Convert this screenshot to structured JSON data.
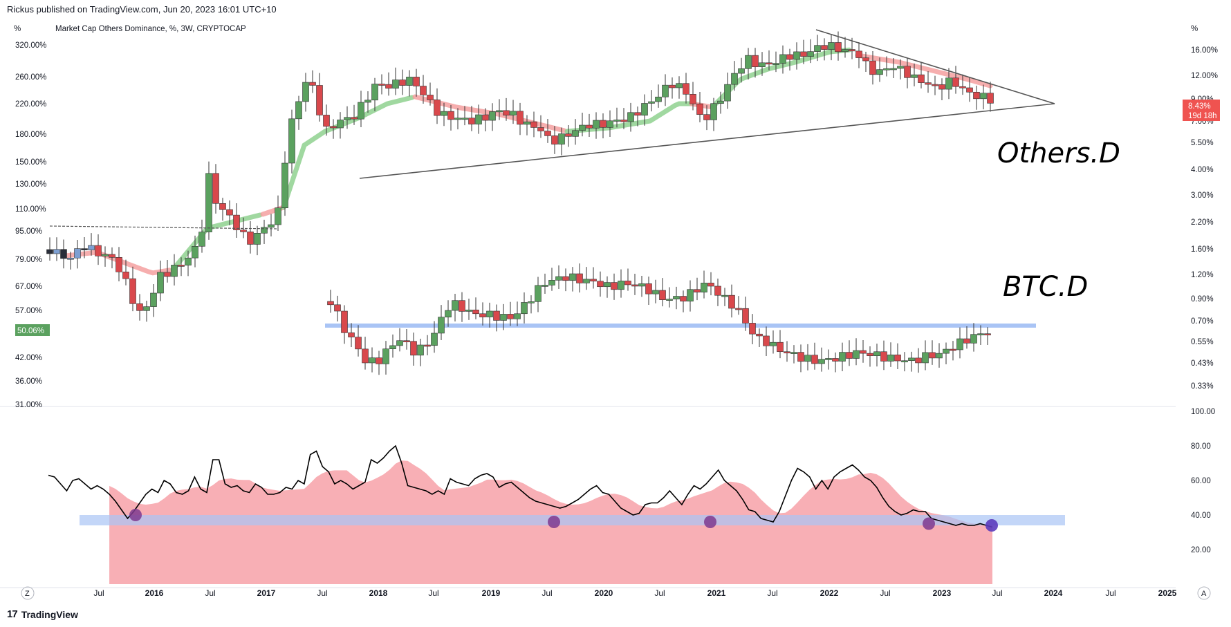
{
  "header": {
    "published": "Rickus published on TradingView.com, Jun 20, 2023 16:01 UTC+10"
  },
  "footer": {
    "brand": "TradingView",
    "logo_glyph": "17"
  },
  "chart_data": {
    "type": "candlestick",
    "title": "Market Cap Others Dominance, %, 3W, CRYPTOCAP",
    "left_axis": {
      "unit_label": "%",
      "ticks": [
        "320.00%",
        "260.00%",
        "220.00%",
        "180.00%",
        "150.00%",
        "130.00%",
        "110.00%",
        "95.00%",
        "79.00%",
        "67.00%",
        "57.00%",
        "50.06%",
        "42.00%",
        "36.00%",
        "31.00%"
      ],
      "current_value": "50.06%"
    },
    "right_axis": {
      "unit_label": "%",
      "ticks": [
        "16.00%",
        "12.00%",
        "9.00%",
        "7.00%",
        "5.50%",
        "4.00%",
        "3.00%",
        "2.20%",
        "1.60%",
        "1.20%",
        "0.90%",
        "0.70%",
        "0.55%",
        "0.43%",
        "0.33%"
      ],
      "current_value": "8.43%",
      "countdown": "19d 18h"
    },
    "x_axis": {
      "ticks": [
        {
          "label": "Jul",
          "bold": false
        },
        {
          "label": "2016",
          "bold": true
        },
        {
          "label": "Jul",
          "bold": false
        },
        {
          "label": "2017",
          "bold": true
        },
        {
          "label": "Jul",
          "bold": false
        },
        {
          "label": "2018",
          "bold": true
        },
        {
          "label": "Jul",
          "bold": false
        },
        {
          "label": "2019",
          "bold": true
        },
        {
          "label": "Jul",
          "bold": false
        },
        {
          "label": "2020",
          "bold": true
        },
        {
          "label": "Jul",
          "bold": false
        },
        {
          "label": "2021",
          "bold": true
        },
        {
          "label": "Jul",
          "bold": false
        },
        {
          "label": "2022",
          "bold": true
        },
        {
          "label": "Jul",
          "bold": false
        },
        {
          "label": "2023",
          "bold": true
        },
        {
          "label": "Jul",
          "bold": false
        },
        {
          "label": "2024",
          "bold": true
        },
        {
          "label": "Jul",
          "bold": false
        },
        {
          "label": "2025",
          "bold": true
        }
      ],
      "left_button": "Z",
      "right_button": "A"
    },
    "annotations": [
      "Others.D",
      "BTC.D"
    ],
    "others_dominance": {
      "last": 8.43,
      "path_values": [
        11.5,
        13.2,
        15.8,
        17.4,
        15.2,
        13.4,
        12.0,
        11.6,
        10.8,
        10.6,
        11.2,
        10.2,
        9.8,
        9.0,
        8.43
      ],
      "triangle_upper": [
        16.5,
        8.9
      ],
      "triangle_lower": [
        3.8,
        8.9
      ]
    },
    "btc_dominance": {
      "last": 50.06,
      "support_level": 50.06
    },
    "oscillator": {
      "axis_ticks": [
        "100.00",
        "80.00",
        "60.00",
        "40.00",
        "20.00"
      ],
      "band": [
        34,
        40
      ],
      "values": [
        63,
        62,
        58,
        54,
        60,
        61,
        58,
        55,
        57,
        55,
        52,
        48,
        43,
        38,
        42,
        47,
        52,
        55,
        53,
        60,
        58,
        53,
        52,
        54,
        62,
        55,
        53,
        72,
        72,
        58,
        56,
        57,
        54,
        53,
        58,
        56,
        52,
        52,
        53,
        56,
        55,
        60,
        58,
        75,
        77,
        68,
        65,
        58,
        60,
        58,
        55,
        57,
        59,
        72,
        70,
        73,
        77,
        80,
        70,
        57,
        56,
        55,
        54,
        52,
        54,
        52,
        61,
        59,
        58,
        57,
        61,
        63,
        64,
        62,
        56,
        58,
        59,
        56,
        53,
        50,
        48,
        47,
        46,
        45,
        44,
        45,
        47,
        49,
        52,
        55,
        57,
        53,
        52,
        48,
        44,
        42,
        40,
        41,
        46,
        47,
        47,
        50,
        54,
        50,
        46,
        52,
        57,
        55,
        58,
        62,
        66,
        60,
        57,
        54,
        49,
        43,
        42,
        38,
        37,
        36,
        42,
        51,
        60,
        67,
        65,
        62,
        55,
        60,
        55,
        62,
        65,
        67,
        69,
        66,
        62,
        60,
        56,
        50,
        45,
        42,
        40,
        41,
        43,
        42,
        42,
        38,
        37,
        36,
        35,
        34,
        35,
        34,
        34,
        35,
        34,
        33
      ]
    },
    "colors": {
      "bull": "#5ba15f",
      "bear": "#d9484c",
      "early_bull": "#7d9fd2",
      "early_bear": "#2a2e39",
      "ema_up": "#8fd18f",
      "ema_down": "#f4a0a0",
      "support": "#a9c4f5",
      "osc_fill": "#f7a6ad",
      "osc_band": "#a9c4f5",
      "osc_marker": "#7e3a8f",
      "osc_marker_last": "#5b3bbd",
      "right_tag": "#ef5350",
      "left_tag": "#5ba15f"
    }
  }
}
